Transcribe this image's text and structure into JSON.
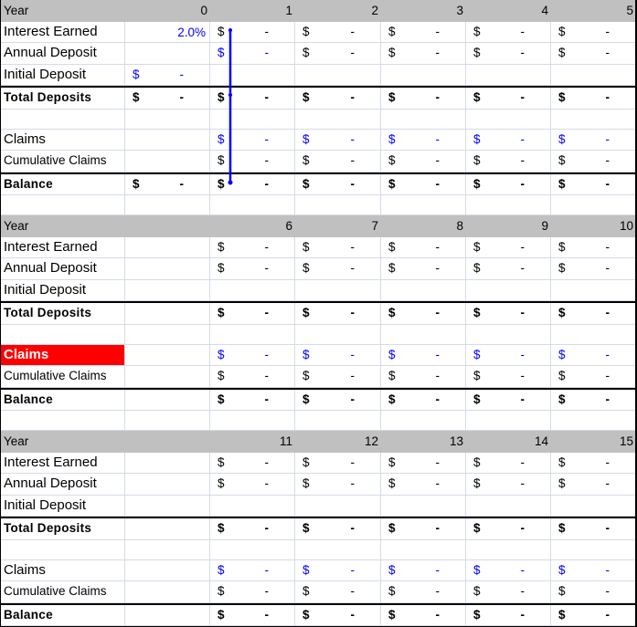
{
  "year_label": "Year",
  "currency": "$",
  "empty_value": "-",
  "colors": {
    "header_bg": "#c0c0c0",
    "input_blue": "#0000ff",
    "highlight_red": "#ff0000",
    "trace_arrow": "#0000ff"
  },
  "blocks": [
    {
      "col0_year": "0",
      "years": [
        "1",
        "2",
        "3",
        "4",
        "5"
      ],
      "rows": [
        {
          "label": "Interest Earned",
          "style": "normal",
          "col0": {
            "type": "percent",
            "text": "2.0%",
            "color": "blue"
          },
          "cells": [
            "black",
            "black",
            "black",
            "black",
            "black"
          ]
        },
        {
          "label": "Annual Deposit",
          "style": "normal",
          "col0": null,
          "cells": [
            "blue",
            "black",
            "black",
            "black",
            "black"
          ]
        },
        {
          "label": "Initial Deposit",
          "style": "normal",
          "col0": {
            "type": "money",
            "color": "blue"
          },
          "cells": [
            null,
            null,
            null,
            null,
            null
          ]
        },
        {
          "label": "Total Deposits",
          "style": "bold",
          "thick": true,
          "col0": {
            "type": "money",
            "color": "black"
          },
          "cells": [
            "black",
            "black",
            "black",
            "black",
            "black"
          ]
        },
        {
          "label": "",
          "style": "normal",
          "col0": null,
          "cells": [
            null,
            null,
            null,
            null,
            null
          ]
        },
        {
          "label": "Claims",
          "style": "normal",
          "col0": null,
          "cells": [
            "blue",
            "blue",
            "blue",
            "blue",
            "blue"
          ]
        },
        {
          "label": "Cumulative Claims",
          "style": "small",
          "col0": null,
          "cells": [
            "black",
            "black",
            "black",
            "black",
            "black"
          ]
        },
        {
          "label": "Balance",
          "style": "bold",
          "thick": true,
          "col0": {
            "type": "money",
            "color": "black"
          },
          "cells": [
            "black",
            "black",
            "black",
            "black",
            "black"
          ]
        },
        {
          "label": "",
          "style": "normal",
          "col0": null,
          "cells": [
            null,
            null,
            null,
            null,
            null
          ]
        }
      ]
    },
    {
      "col0_year": "",
      "years": [
        "6",
        "7",
        "8",
        "9",
        "10"
      ],
      "rows": [
        {
          "label": "Interest Earned",
          "style": "normal",
          "col0": null,
          "cells": [
            "black",
            "black",
            "black",
            "black",
            "black"
          ]
        },
        {
          "label": "Annual Deposit",
          "style": "normal",
          "col0": null,
          "cells": [
            "black",
            "black",
            "black",
            "black",
            "black"
          ]
        },
        {
          "label": "Initial Deposit",
          "style": "normal",
          "col0": null,
          "cells": [
            null,
            null,
            null,
            null,
            null
          ]
        },
        {
          "label": "Total Deposits",
          "style": "bold",
          "thick": true,
          "col0": null,
          "cells": [
            "black",
            "black",
            "black",
            "black",
            "black"
          ]
        },
        {
          "label": "",
          "style": "normal",
          "col0": null,
          "cells": [
            null,
            null,
            null,
            null,
            null
          ]
        },
        {
          "label": "Claims",
          "style": "red",
          "col0": null,
          "cells": [
            "blue",
            "blue",
            "blue",
            "blue",
            "blue"
          ]
        },
        {
          "label": "Cumulative Claims",
          "style": "small",
          "col0": null,
          "cells": [
            "black",
            "black",
            "black",
            "black",
            "black"
          ]
        },
        {
          "label": "Balance",
          "style": "bold",
          "thick": true,
          "col0": null,
          "cells": [
            "black",
            "black",
            "black",
            "black",
            "black"
          ]
        },
        {
          "label": "",
          "style": "normal",
          "col0": null,
          "cells": [
            null,
            null,
            null,
            null,
            null
          ]
        }
      ]
    },
    {
      "col0_year": "",
      "years": [
        "11",
        "12",
        "13",
        "14",
        "15"
      ],
      "rows": [
        {
          "label": "Interest Earned",
          "style": "normal",
          "col0": null,
          "cells": [
            "black",
            "black",
            "black",
            "black",
            "black"
          ]
        },
        {
          "label": "Annual Deposit",
          "style": "normal",
          "col0": null,
          "cells": [
            "black",
            "black",
            "black",
            "black",
            "black"
          ]
        },
        {
          "label": "Initial Deposit",
          "style": "normal",
          "col0": null,
          "cells": [
            null,
            null,
            null,
            null,
            null
          ]
        },
        {
          "label": "Total Deposits",
          "style": "bold",
          "thick": true,
          "col0": null,
          "cells": [
            "black",
            "black",
            "black",
            "black",
            "black"
          ]
        },
        {
          "label": "",
          "style": "normal",
          "col0": null,
          "cells": [
            null,
            null,
            null,
            null,
            null
          ]
        },
        {
          "label": "Claims",
          "style": "normal",
          "col0": null,
          "cells": [
            "blue",
            "blue",
            "blue",
            "blue",
            "blue"
          ]
        },
        {
          "label": "Cumulative Claims",
          "style": "small",
          "col0": null,
          "cells": [
            "black",
            "black",
            "black",
            "black",
            "black"
          ]
        },
        {
          "label": "Balance",
          "style": "bold",
          "thick": true,
          "col0": null,
          "cells": [
            "black",
            "black",
            "black",
            "black",
            "black"
          ]
        }
      ]
    }
  ]
}
